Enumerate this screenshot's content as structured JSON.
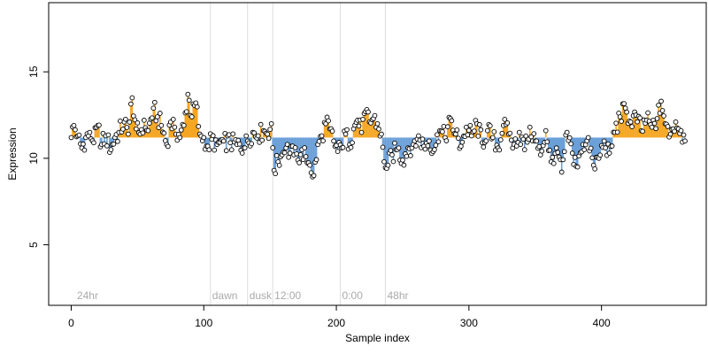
{
  "chart_data": {
    "type": "scatter",
    "title": "",
    "xlabel": "Sample index",
    "ylabel": "Expression",
    "xlim": [
      -17,
      479
    ],
    "ylim": [
      1.5,
      19
    ],
    "xticks": [
      0,
      100,
      200,
      300,
      400
    ],
    "yticks": [
      5,
      10,
      15
    ],
    "reference_level": 11.2,
    "grid": false,
    "legend": "none",
    "colors": {
      "above": "#f5a623",
      "below": "#6a9fd8",
      "point_fill": "#ffffff",
      "point_edge": "#000000",
      "vline": "#dddddd",
      "annotation": "#aaaaaa"
    },
    "annotations": [
      {
        "x": 3,
        "label": "24hr"
      },
      {
        "x": 105,
        "label": "dawn"
      },
      {
        "x": 133,
        "label": "dusk"
      },
      {
        "x": 152,
        "label": "12:00"
      },
      {
        "x": 203,
        "label": "0:00"
      },
      {
        "x": 237,
        "label": "48hr"
      }
    ],
    "vlines": [
      105,
      133,
      152,
      203,
      237
    ],
    "anchors": [
      [
        0,
        11.2
      ],
      [
        2,
        11.9
      ],
      [
        5,
        11.3
      ],
      [
        8,
        10.6
      ],
      [
        11,
        11.2
      ],
      [
        14,
        11.5
      ],
      [
        17,
        10.9
      ],
      [
        20,
        11.9
      ],
      [
        23,
        10.8
      ],
      [
        26,
        11.3
      ],
      [
        30,
        10.5
      ],
      [
        33,
        11.2
      ],
      [
        36,
        11.5
      ],
      [
        40,
        12.1
      ],
      [
        43,
        11.4
      ],
      [
        46,
        13.5
      ],
      [
        49,
        11.7
      ],
      [
        52,
        11.4
      ],
      [
        55,
        12.2
      ],
      [
        58,
        11.6
      ],
      [
        62,
        12.9
      ],
      [
        65,
        12.4
      ],
      [
        68,
        11.9
      ],
      [
        72,
        10.8
      ],
      [
        75,
        12.1
      ],
      [
        78,
        11.8
      ],
      [
        82,
        11.2
      ],
      [
        85,
        11.9
      ],
      [
        88,
        13.7
      ],
      [
        91,
        12.4
      ],
      [
        94,
        13.2
      ],
      [
        97,
        11.4
      ],
      [
        100,
        11.2
      ],
      [
        103,
        10.7
      ],
      [
        106,
        11.1
      ],
      [
        110,
        10.8
      ],
      [
        115,
        11.0
      ],
      [
        120,
        10.9
      ],
      [
        125,
        10.8
      ],
      [
        130,
        10.6
      ],
      [
        133,
        11.0
      ],
      [
        137,
        11.5
      ],
      [
        141,
        11.3
      ],
      [
        145,
        11.6
      ],
      [
        148,
        11.4
      ],
      [
        151,
        12.0
      ],
      [
        153,
        9.3
      ],
      [
        156,
        9.8
      ],
      [
        159,
        10.2
      ],
      [
        162,
        10.6
      ],
      [
        165,
        10.3
      ],
      [
        168,
        10.2
      ],
      [
        171,
        9.9
      ],
      [
        174,
        10.5
      ],
      [
        177,
        10.1
      ],
      [
        180,
        9.6
      ],
      [
        183,
        9.0
      ],
      [
        186,
        10.8
      ],
      [
        189,
        11.3
      ],
      [
        192,
        12.0
      ],
      [
        195,
        11.7
      ],
      [
        198,
        11.0
      ],
      [
        201,
        10.4
      ],
      [
        204,
        10.6
      ],
      [
        207,
        11.4
      ],
      [
        210,
        10.8
      ],
      [
        213,
        11.7
      ],
      [
        216,
        12.2
      ],
      [
        219,
        11.5
      ],
      [
        222,
        12.7
      ],
      [
        225,
        12.1
      ],
      [
        228,
        12.3
      ],
      [
        231,
        12.0
      ],
      [
        234,
        11.4
      ],
      [
        236,
        9.8
      ],
      [
        239,
        9.6
      ],
      [
        242,
        10.2
      ],
      [
        246,
        10.5
      ],
      [
        250,
        9.9
      ],
      [
        254,
        10.6
      ],
      [
        258,
        10.8
      ],
      [
        262,
        11.3
      ],
      [
        266,
        10.7
      ],
      [
        270,
        11.0
      ],
      [
        274,
        10.5
      ],
      [
        278,
        11.6
      ],
      [
        282,
        11.2
      ],
      [
        286,
        12.3
      ],
      [
        290,
        11.4
      ],
      [
        294,
        10.7
      ],
      [
        298,
        11.8
      ],
      [
        302,
        11.3
      ],
      [
        306,
        12.0
      ],
      [
        310,
        10.9
      ],
      [
        314,
        11.6
      ],
      [
        318,
        11.2
      ],
      [
        322,
        10.6
      ],
      [
        326,
        11.9
      ],
      [
        330,
        11.4
      ],
      [
        334,
        10.8
      ],
      [
        338,
        11.5
      ],
      [
        342,
        10.5
      ],
      [
        346,
        11.8
      ],
      [
        350,
        11.0
      ],
      [
        354,
        10.2
      ],
      [
        358,
        11.6
      ],
      [
        362,
        9.8
      ],
      [
        366,
        10.6
      ],
      [
        370,
        9.2
      ],
      [
        374,
        11.5
      ],
      [
        378,
        10.3
      ],
      [
        382,
        9.5
      ],
      [
        386,
        10.8
      ],
      [
        390,
        11.2
      ],
      [
        394,
        9.6
      ],
      [
        398,
        10.0
      ],
      [
        402,
        11.0
      ],
      [
        406,
        10.3
      ],
      [
        410,
        11.5
      ],
      [
        414,
        12.4
      ],
      [
        418,
        12.9
      ],
      [
        422,
        12.1
      ],
      [
        426,
        12.5
      ],
      [
        430,
        11.6
      ],
      [
        434,
        12.2
      ],
      [
        438,
        11.8
      ],
      [
        442,
        12.3
      ],
      [
        445,
        13.3
      ],
      [
        448,
        12.0
      ],
      [
        452,
        11.4
      ],
      [
        456,
        12.1
      ],
      [
        460,
        11.6
      ],
      [
        463,
        11.0
      ]
    ],
    "n_points": 464,
    "noise_amplitude": 0.55
  }
}
